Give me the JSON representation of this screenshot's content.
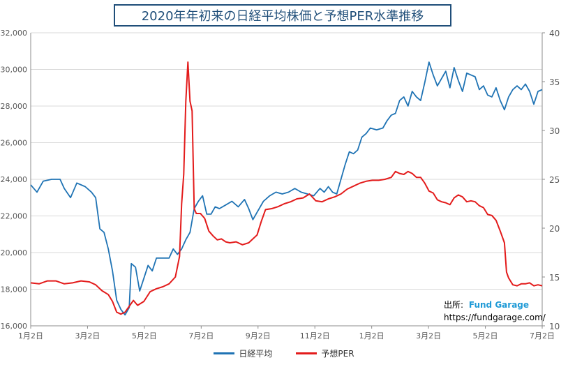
{
  "chart_data": {
    "type": "line",
    "title": "2020年年初来の日経平均株価と予想PER水準推移",
    "y_left": {
      "ylim": [
        16000,
        32000
      ],
      "ticks": [
        "16,000",
        "18,000",
        "20,000",
        "22,000",
        "24,000",
        "26,000",
        "28,000",
        "30,000",
        "32,000"
      ]
    },
    "y_right": {
      "ylim": [
        10,
        40
      ],
      "ticks": [
        "10",
        "15",
        "20",
        "25",
        "30",
        "35",
        "40"
      ]
    },
    "x_ticks": [
      "1月2日",
      "3月2日",
      "5月2日",
      "7月2日",
      "9月2日",
      "11月2日",
      "1月2日",
      "3月2日",
      "5月2日",
      "7月2日"
    ],
    "grid": "horizontal",
    "legend_position": "bottom",
    "series": [
      {
        "name": "日経平均",
        "axis": "left",
        "color": "#1f73b4",
        "points": [
          [
            0,
            23700
          ],
          [
            3,
            23300
          ],
          [
            6,
            23900
          ],
          [
            10,
            24000
          ],
          [
            14,
            24000
          ],
          [
            16,
            23500
          ],
          [
            19,
            23000
          ],
          [
            22,
            23800
          ],
          [
            26,
            23600
          ],
          [
            29,
            23300
          ],
          [
            31,
            23000
          ],
          [
            33,
            21300
          ],
          [
            35,
            21100
          ],
          [
            37,
            20200
          ],
          [
            39,
            19000
          ],
          [
            41,
            17400
          ],
          [
            43,
            16900
          ],
          [
            45,
            16600
          ],
          [
            47,
            17000
          ],
          [
            48,
            19400
          ],
          [
            50,
            19200
          ],
          [
            52,
            17900
          ],
          [
            54,
            18600
          ],
          [
            56,
            19300
          ],
          [
            58,
            19000
          ],
          [
            60,
            19700
          ],
          [
            63,
            19700
          ],
          [
            66,
            19700
          ],
          [
            68,
            20200
          ],
          [
            70,
            19900
          ],
          [
            72,
            20200
          ],
          [
            74,
            20700
          ],
          [
            76,
            21100
          ],
          [
            78,
            22400
          ],
          [
            80,
            22800
          ],
          [
            82,
            23100
          ],
          [
            84,
            22100
          ],
          [
            86,
            22100
          ],
          [
            88,
            22500
          ],
          [
            90,
            22400
          ],
          [
            93,
            22600
          ],
          [
            96,
            22800
          ],
          [
            99,
            22500
          ],
          [
            102,
            22900
          ],
          [
            104,
            22400
          ],
          [
            106,
            21800
          ],
          [
            108,
            22200
          ],
          [
            111,
            22800
          ],
          [
            114,
            23100
          ],
          [
            117,
            23300
          ],
          [
            120,
            23200
          ],
          [
            123,
            23300
          ],
          [
            126,
            23500
          ],
          [
            129,
            23300
          ],
          [
            132,
            23200
          ],
          [
            135,
            23100
          ],
          [
            138,
            23500
          ],
          [
            140,
            23300
          ],
          [
            142,
            23600
          ],
          [
            144,
            23300
          ],
          [
            146,
            23200
          ],
          [
            148,
            24000
          ],
          [
            150,
            24800
          ],
          [
            152,
            25500
          ],
          [
            154,
            25400
          ],
          [
            156,
            25600
          ],
          [
            158,
            26300
          ],
          [
            160,
            26500
          ],
          [
            162,
            26800
          ],
          [
            165,
            26700
          ],
          [
            168,
            26800
          ],
          [
            170,
            27200
          ],
          [
            172,
            27500
          ],
          [
            174,
            27600
          ],
          [
            176,
            28300
          ],
          [
            178,
            28500
          ],
          [
            180,
            28000
          ],
          [
            182,
            28800
          ],
          [
            184,
            28500
          ],
          [
            186,
            28300
          ],
          [
            188,
            29300
          ],
          [
            190,
            30400
          ],
          [
            192,
            29700
          ],
          [
            194,
            29100
          ],
          [
            196,
            29500
          ],
          [
            198,
            29900
          ],
          [
            200,
            29000
          ],
          [
            202,
            30100
          ],
          [
            204,
            29400
          ],
          [
            206,
            28800
          ],
          [
            208,
            29800
          ],
          [
            210,
            29700
          ],
          [
            212,
            29600
          ],
          [
            214,
            28900
          ],
          [
            216,
            29100
          ],
          [
            218,
            28600
          ],
          [
            220,
            28500
          ],
          [
            222,
            29000
          ],
          [
            224,
            28300
          ],
          [
            226,
            27800
          ],
          [
            228,
            28500
          ],
          [
            230,
            28900
          ],
          [
            232,
            29100
          ],
          [
            234,
            28900
          ],
          [
            236,
            29200
          ],
          [
            238,
            28800
          ],
          [
            240,
            28100
          ],
          [
            242,
            28800
          ],
          [
            244,
            28900
          ]
        ]
      },
      {
        "name": "予想PER",
        "axis": "right",
        "color": "#e31b1b",
        "points": [
          [
            0,
            14.4
          ],
          [
            4,
            14.3
          ],
          [
            8,
            14.6
          ],
          [
            12,
            14.6
          ],
          [
            16,
            14.3
          ],
          [
            20,
            14.4
          ],
          [
            24,
            14.6
          ],
          [
            28,
            14.5
          ],
          [
            31,
            14.2
          ],
          [
            34,
            13.6
          ],
          [
            37,
            13.2
          ],
          [
            39,
            12.5
          ],
          [
            41,
            11.4
          ],
          [
            43,
            11.2
          ],
          [
            45,
            11.4
          ],
          [
            47,
            12.0
          ],
          [
            49,
            12.6
          ],
          [
            51,
            12.1
          ],
          [
            54,
            12.5
          ],
          [
            57,
            13.5
          ],
          [
            60,
            13.8
          ],
          [
            63,
            14.0
          ],
          [
            66,
            14.3
          ],
          [
            69,
            15.0
          ],
          [
            71,
            17.1
          ],
          [
            72,
            22.5
          ],
          [
            73,
            25.5
          ],
          [
            74,
            33.0
          ],
          [
            75,
            37.0
          ],
          [
            76,
            33.0
          ],
          [
            77,
            32.0
          ],
          [
            78,
            22.0
          ],
          [
            79,
            21.5
          ],
          [
            81,
            21.5
          ],
          [
            83,
            21.0
          ],
          [
            85,
            19.7
          ],
          [
            87,
            19.2
          ],
          [
            89,
            18.8
          ],
          [
            91,
            18.9
          ],
          [
            93,
            18.6
          ],
          [
            95,
            18.5
          ],
          [
            98,
            18.6
          ],
          [
            101,
            18.3
          ],
          [
            104,
            18.5
          ],
          [
            106,
            18.9
          ],
          [
            108,
            19.3
          ],
          [
            110,
            20.7
          ],
          [
            112,
            21.9
          ],
          [
            115,
            22.0
          ],
          [
            118,
            22.2
          ],
          [
            121,
            22.5
          ],
          [
            124,
            22.7
          ],
          [
            127,
            23.0
          ],
          [
            130,
            23.1
          ],
          [
            133,
            23.5
          ],
          [
            136,
            22.8
          ],
          [
            139,
            22.7
          ],
          [
            142,
            23.0
          ],
          [
            145,
            23.2
          ],
          [
            148,
            23.5
          ],
          [
            151,
            24.0
          ],
          [
            154,
            24.3
          ],
          [
            157,
            24.6
          ],
          [
            160,
            24.8
          ],
          [
            163,
            24.9
          ],
          [
            166,
            24.9
          ],
          [
            169,
            25.0
          ],
          [
            172,
            25.2
          ],
          [
            174,
            25.8
          ],
          [
            176,
            25.6
          ],
          [
            178,
            25.5
          ],
          [
            180,
            25.8
          ],
          [
            182,
            25.6
          ],
          [
            184,
            25.2
          ],
          [
            186,
            25.2
          ],
          [
            188,
            24.6
          ],
          [
            190,
            23.8
          ],
          [
            192,
            23.6
          ],
          [
            194,
            22.9
          ],
          [
            196,
            22.7
          ],
          [
            198,
            22.6
          ],
          [
            200,
            22.4
          ],
          [
            202,
            23.1
          ],
          [
            204,
            23.4
          ],
          [
            206,
            23.2
          ],
          [
            208,
            22.7
          ],
          [
            210,
            22.8
          ],
          [
            212,
            22.7
          ],
          [
            214,
            22.3
          ],
          [
            216,
            22.1
          ],
          [
            218,
            21.4
          ],
          [
            220,
            21.3
          ],
          [
            222,
            20.8
          ],
          [
            224,
            19.7
          ],
          [
            226,
            18.5
          ],
          [
            227,
            15.5
          ],
          [
            228,
            14.9
          ],
          [
            230,
            14.2
          ],
          [
            232,
            14.1
          ],
          [
            234,
            14.3
          ],
          [
            236,
            14.3
          ],
          [
            238,
            14.4
          ],
          [
            240,
            14.1
          ],
          [
            242,
            14.2
          ],
          [
            244,
            14.1
          ]
        ]
      }
    ]
  },
  "source": {
    "label": "出所:",
    "brand": "Fund Garage",
    "url": "https://fundgarage.com/"
  }
}
